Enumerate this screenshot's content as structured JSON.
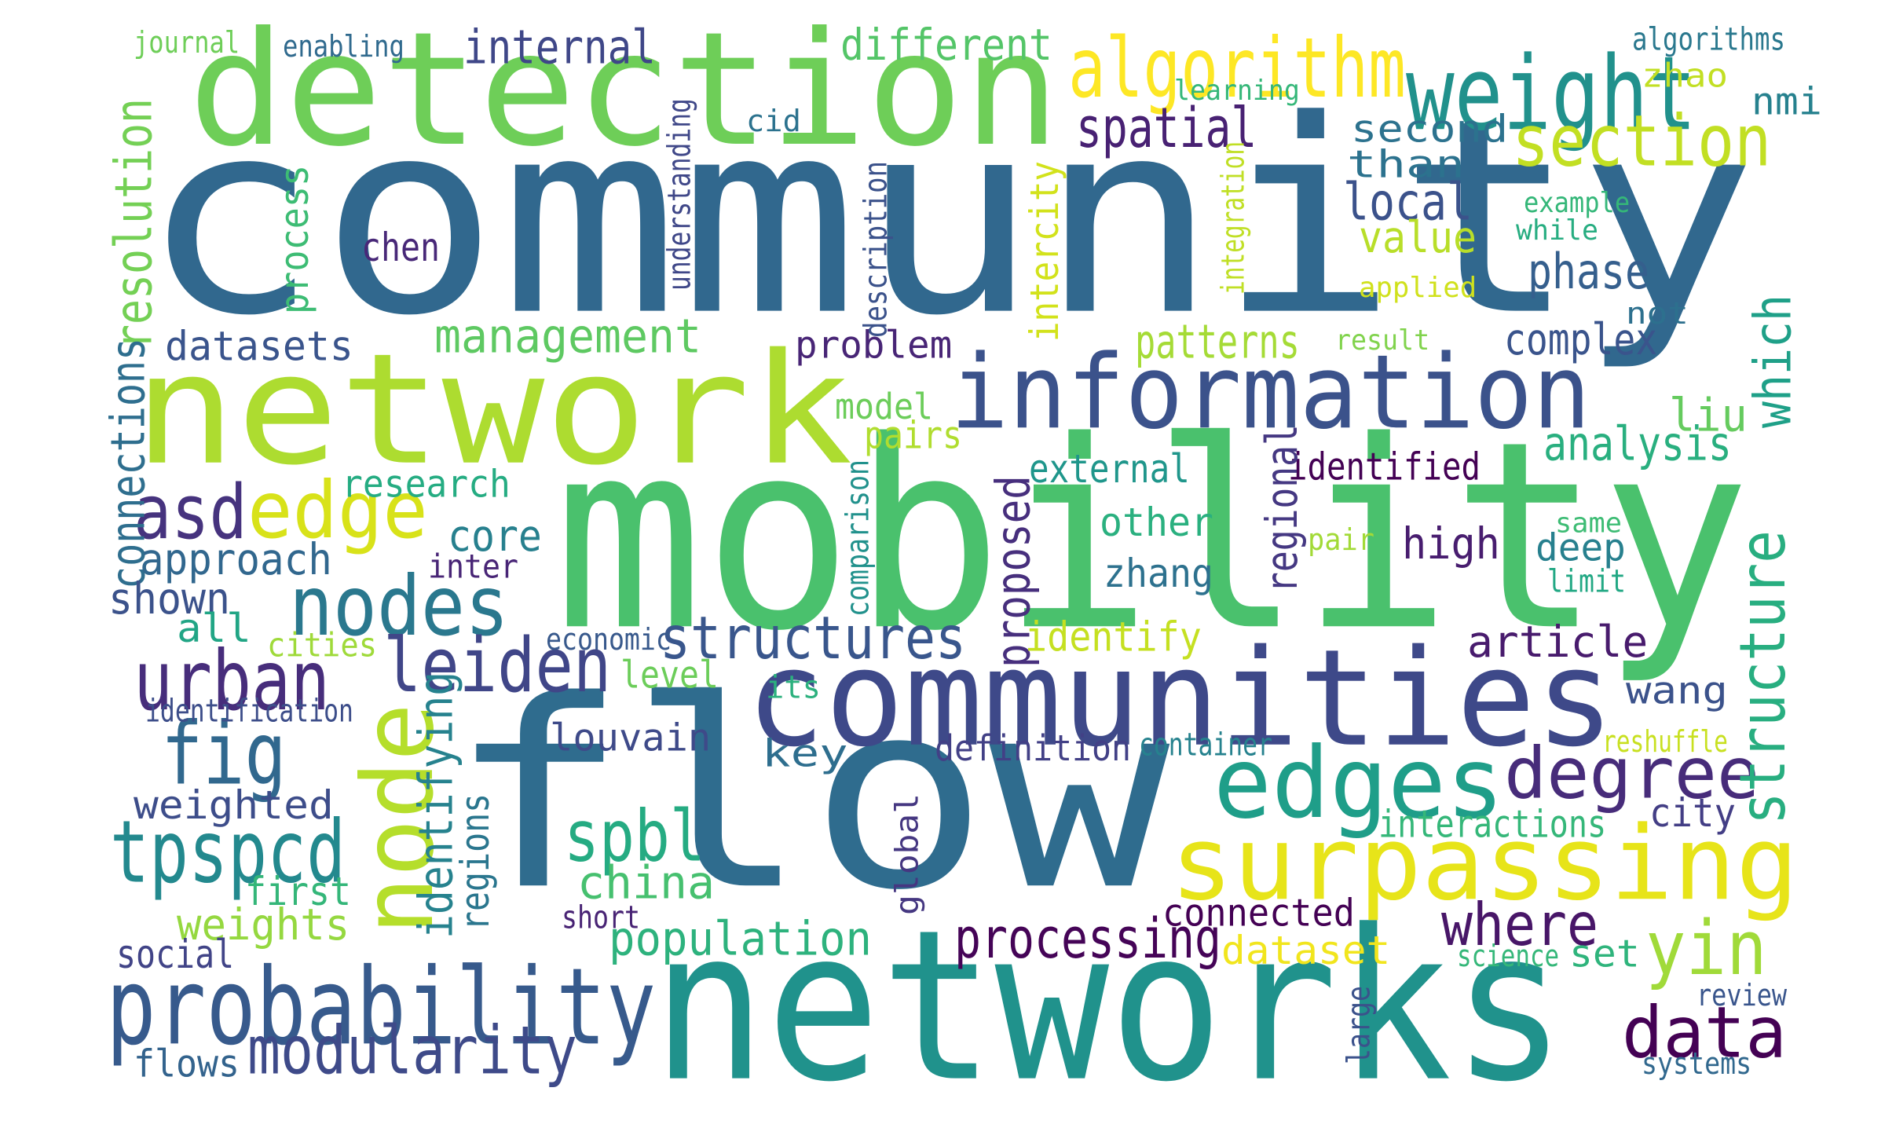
{
  "words": [
    {
      "text": "community",
      "color": "#31688e"
    },
    {
      "text": "detection",
      "color": "#6ece58"
    },
    {
      "text": "network",
      "color": "#addc30"
    },
    {
      "text": "mobility",
      "color": "#4ac16d"
    },
    {
      "text": "flow",
      "color": "#2f6c8e"
    },
    {
      "text": "networks",
      "color": "#20928c"
    },
    {
      "text": "communities",
      "color": "#3e4989"
    },
    {
      "text": "information",
      "color": "#3b528b"
    },
    {
      "text": "surpassing",
      "color": "#e7e419"
    },
    {
      "text": "algorithm",
      "color": "#fde725"
    },
    {
      "text": "weight",
      "color": "#21918c"
    },
    {
      "text": "section",
      "color": "#c2df23"
    },
    {
      "text": "probability",
      "color": "#375a8c"
    },
    {
      "text": "edges",
      "color": "#1f9e89"
    },
    {
      "text": "node",
      "color": "#b5de2b"
    },
    {
      "text": "nodes",
      "color": "#2a788e"
    },
    {
      "text": "edge",
      "color": "#d8e219"
    },
    {
      "text": "urban",
      "color": "#472d7b"
    },
    {
      "text": "leiden",
      "color": "#404688"
    },
    {
      "text": "fig",
      "color": "#31688e"
    },
    {
      "text": "tpspcd",
      "color": "#23898e"
    },
    {
      "text": "spbl",
      "color": "#25ab82"
    },
    {
      "text": "modularity",
      "color": "#3e4a89"
    },
    {
      "text": "degree",
      "color": "#472c7a"
    },
    {
      "text": "data",
      "color": "#440154"
    },
    {
      "text": "yin",
      "color": "#a0da39"
    },
    {
      "text": "structures",
      "color": "#39568c"
    },
    {
      "text": "asd",
      "color": "#46337e"
    },
    {
      "text": "spatial",
      "color": "#482173"
    },
    {
      "text": "management",
      "color": "#5ec962"
    },
    {
      "text": "different",
      "color": "#54c568"
    },
    {
      "text": "internal",
      "color": "#3f4788"
    },
    {
      "text": "processing",
      "color": "#450457"
    },
    {
      "text": "population",
      "color": "#2db27d"
    },
    {
      "text": "where",
      "color": "#481668"
    },
    {
      "text": "structure",
      "color": "#28ae80"
    },
    {
      "text": "which",
      "color": "#1fa088"
    },
    {
      "text": "analysis",
      "color": "#29af7f"
    },
    {
      "text": "local",
      "color": "#3b528b"
    },
    {
      "text": "second",
      "color": "#2c728e"
    },
    {
      "text": "than",
      "color": "#2c728e"
    },
    {
      "text": "value",
      "color": "#b8de29"
    },
    {
      "text": "phase",
      "color": "#355f8d"
    },
    {
      "text": "complex",
      "color": "#3a548c"
    },
    {
      "text": "patterns",
      "color": "#a5db36"
    },
    {
      "text": "problem",
      "color": "#482576"
    },
    {
      "text": "resolution",
      "color": "#74d055"
    },
    {
      "text": "process",
      "color": "#3dbc74"
    },
    {
      "text": "datasets",
      "color": "#3a548c"
    },
    {
      "text": "chen",
      "color": "#482878"
    },
    {
      "text": "identifying",
      "color": "#26828e"
    },
    {
      "text": "connections",
      "color": "#2e6e8e"
    },
    {
      "text": "research",
      "color": "#25ac82"
    },
    {
      "text": "core",
      "color": "#27808e"
    },
    {
      "text": "approach",
      "color": "#31678e"
    },
    {
      "text": "shown",
      "color": "#3b528b"
    },
    {
      "text": "all",
      "color": "#21a585"
    },
    {
      "text": "inter",
      "color": "#482576"
    },
    {
      "text": "cities",
      "color": "#9fda3a"
    },
    {
      "text": "identification",
      "color": "#3d4e8a"
    },
    {
      "text": "weighted",
      "color": "#3d4d8a"
    },
    {
      "text": "first",
      "color": "#34b679"
    },
    {
      "text": "weights",
      "color": "#95d840"
    },
    {
      "text": "social",
      "color": "#414487"
    },
    {
      "text": "flows",
      "color": "#33638d"
    },
    {
      "text": "regions",
      "color": "#2a768e"
    },
    {
      "text": "china",
      "color": "#46c06f"
    },
    {
      "text": "louvain",
      "color": "#3e4a89"
    },
    {
      "text": "key",
      "color": "#2e6e8e"
    },
    {
      "text": "level",
      "color": "#6ccd5a"
    },
    {
      "text": "its",
      "color": "#2cb17e"
    },
    {
      "text": "economic",
      "color": "#38598c"
    },
    {
      "text": "short",
      "color": "#482374"
    },
    {
      "text": "global",
      "color": "#453781"
    },
    {
      "text": "definition",
      "color": "#424086"
    },
    {
      "text": "container",
      "color": "#26828e"
    },
    {
      "text": "interactions",
      "color": "#35b779"
    },
    {
      "text": "connected",
      "color": "#440154"
    },
    {
      "text": "dataset",
      "color": "#f1e51d"
    },
    {
      "text": "set",
      "color": "#2fb47c"
    },
    {
      "text": "science",
      "color": "#35b779"
    },
    {
      "text": "large",
      "color": "#3b528b"
    },
    {
      "text": "review",
      "color": "#39558c"
    },
    {
      "text": "systems",
      "color": "#31688e"
    },
    {
      "text": "reshuffle",
      "color": "#c8e020"
    },
    {
      "text": "city",
      "color": "#433e85"
    },
    {
      "text": "wang",
      "color": "#3b528b"
    },
    {
      "text": "article",
      "color": "#481b6d"
    },
    {
      "text": "identified",
      "color": "#440154"
    },
    {
      "text": "high",
      "color": "#481d6f"
    },
    {
      "text": "deep",
      "color": "#27808e"
    },
    {
      "text": "limit",
      "color": "#22a884"
    },
    {
      "text": "same",
      "color": "#3dbc74"
    },
    {
      "text": "pair",
      "color": "#a2da37"
    },
    {
      "text": "regional",
      "color": "#453882"
    },
    {
      "text": "proposed",
      "color": "#472f7d"
    },
    {
      "text": "external",
      "color": "#1f968b"
    },
    {
      "text": "other",
      "color": "#2ab07f"
    },
    {
      "text": "zhang",
      "color": "#2d718e"
    },
    {
      "text": "identify",
      "color": "#c5e021"
    },
    {
      "text": "comparison",
      "color": "#21918c"
    },
    {
      "text": "pairs",
      "color": "#b0dd2f"
    },
    {
      "text": "model",
      "color": "#6ccd5a"
    },
    {
      "text": "intercity",
      "color": "#d2e21b"
    },
    {
      "text": "integration",
      "color": "#c0df25"
    },
    {
      "text": "description",
      "color": "#3b528b"
    },
    {
      "text": "understanding",
      "color": "#3f4788"
    },
    {
      "text": "cid",
      "color": "#2c728e"
    },
    {
      "text": "liu",
      "color": "#65cb5e"
    },
    {
      "text": "result",
      "color": "#81d34d"
    },
    {
      "text": "not",
      "color": "#2d708e"
    },
    {
      "text": "applied",
      "color": "#d0e11c"
    },
    {
      "text": "while",
      "color": "#27ad81"
    },
    {
      "text": "example",
      "color": "#35b779"
    },
    {
      "text": "nmi",
      "color": "#26818e"
    },
    {
      "text": "zhao",
      "color": "#c2df23"
    },
    {
      "text": "algorithms",
      "color": "#2a788e"
    },
    {
      "text": "learning",
      "color": "#35b779"
    },
    {
      "text": "journal",
      "color": "#6ece58"
    },
    {
      "text": "enabling",
      "color": "#306a8e"
    }
  ]
}
